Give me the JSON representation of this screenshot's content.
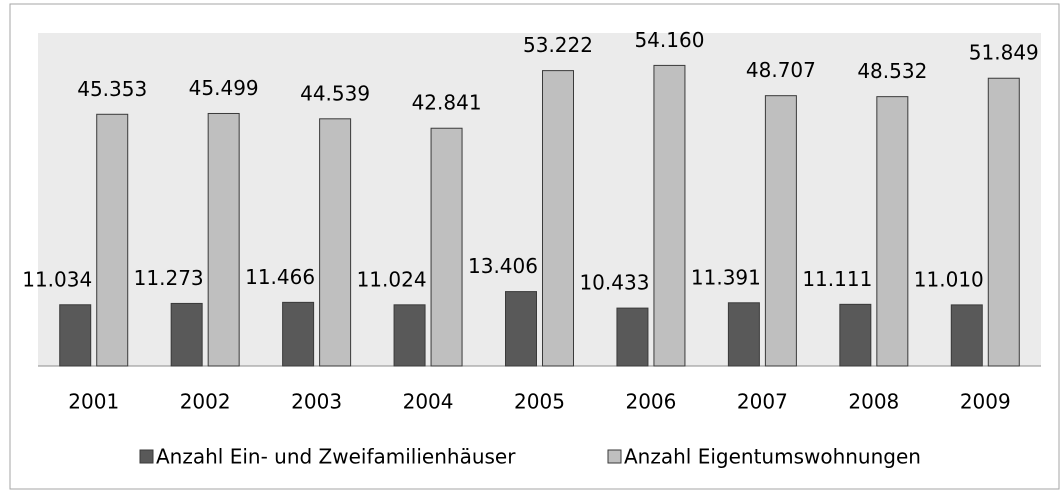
{
  "chart_data": {
    "type": "bar",
    "categories": [
      "2001",
      "2002",
      "2003",
      "2004",
      "2005",
      "2006",
      "2007",
      "2008",
      "2009"
    ],
    "series": [
      {
        "name": "Anzahl Ein- und Zweifamilienhäuser",
        "color": "#595959",
        "values": [
          11034,
          11273,
          11466,
          11024,
          13406,
          10433,
          11391,
          11111,
          11010
        ],
        "value_labels": [
          "11.034",
          "11.273",
          "11.466",
          "11.024",
          "13.406",
          "10.433",
          "11.391",
          "11.111",
          "11.010"
        ]
      },
      {
        "name": "Anzahl Eigentumswohnungen",
        "color": "#bfbfbf",
        "values": [
          45353,
          45499,
          44539,
          42841,
          53222,
          54160,
          48707,
          48532,
          51849
        ],
        "value_labels": [
          "45.353",
          "45.499",
          "44.539",
          "42.841",
          "53.222",
          "54.160",
          "48.707",
          "48.532",
          "51.849"
        ]
      }
    ],
    "ylim": [
      0,
      60000
    ]
  }
}
